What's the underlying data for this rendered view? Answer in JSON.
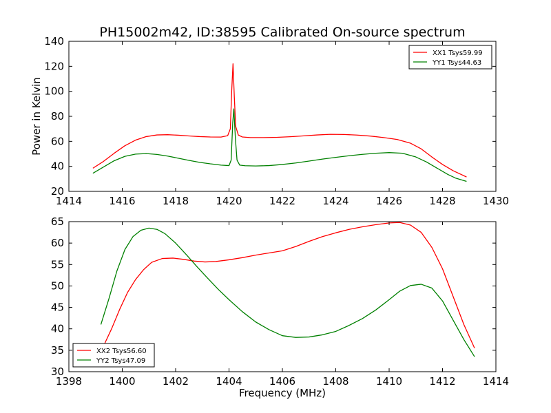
{
  "title": "PH15002m42, ID:38595 Calibrated On-source spectrum",
  "chart_data": [
    {
      "type": "line",
      "xlim": [
        1414,
        1430
      ],
      "ylim": [
        20,
        140
      ],
      "xticks": [
        1414,
        1416,
        1418,
        1420,
        1422,
        1424,
        1426,
        1428,
        1430
      ],
      "yticks": [
        20,
        40,
        60,
        80,
        100,
        120,
        140
      ],
      "xlabel": "",
      "ylabel": "Power in Kelvin",
      "legend": "top-right",
      "series": [
        {
          "name": "XX1 Tsys59.99",
          "color": "#ff0000",
          "x": [
            1414.9,
            1415.3,
            1415.7,
            1416.1,
            1416.5,
            1416.9,
            1417.3,
            1417.7,
            1418.1,
            1418.5,
            1418.9,
            1419.3,
            1419.7,
            1419.95,
            1420.05,
            1420.1,
            1420.15,
            1420.2,
            1420.25,
            1420.35,
            1420.5,
            1420.8,
            1421.3,
            1421.8,
            1422.3,
            1422.8,
            1423.3,
            1423.8,
            1424.3,
            1424.8,
            1425.3,
            1425.8,
            1426.3,
            1426.8,
            1427.2,
            1427.6,
            1428.0,
            1428.4,
            1428.9
          ],
          "y": [
            38.5,
            44,
            50.5,
            56.5,
            61,
            63.8,
            65.1,
            65.3,
            64.9,
            64.3,
            63.8,
            63.5,
            63.4,
            64.5,
            70,
            100,
            122,
            95,
            72,
            65,
            63.5,
            63,
            63,
            63.2,
            63.7,
            64.4,
            65.1,
            65.6,
            65.5,
            65,
            64.2,
            63,
            61.5,
            58.5,
            54,
            47.5,
            41.5,
            36.5,
            31.5
          ]
        },
        {
          "name": "YY1 Tsys44.63",
          "color": "#008000",
          "x": [
            1414.9,
            1415.3,
            1415.7,
            1416.1,
            1416.5,
            1416.9,
            1417.3,
            1417.7,
            1418.1,
            1418.5,
            1418.9,
            1419.3,
            1419.7,
            1420.0,
            1420.08,
            1420.14,
            1420.18,
            1420.24,
            1420.3,
            1420.4,
            1420.6,
            1421.0,
            1421.5,
            1422.0,
            1422.5,
            1423.0,
            1423.5,
            1424.0,
            1424.5,
            1425.0,
            1425.5,
            1426.0,
            1426.5,
            1427.0,
            1427.4,
            1427.8,
            1428.2,
            1428.5,
            1428.9
          ],
          "y": [
            34.5,
            39.5,
            44.5,
            48,
            49.8,
            50.2,
            49.5,
            48.2,
            46.5,
            44.8,
            43.2,
            42,
            41,
            40.6,
            45,
            75,
            86,
            62,
            45,
            41,
            40.5,
            40.3,
            40.6,
            41.5,
            42.7,
            44.2,
            45.8,
            47.2,
            48.5,
            49.6,
            50.5,
            51,
            50.5,
            47.5,
            43.5,
            38.5,
            33.5,
            30.5,
            28
          ]
        }
      ]
    },
    {
      "type": "line",
      "xlim": [
        1398,
        1414
      ],
      "ylim": [
        30,
        65
      ],
      "xticks": [
        1398,
        1400,
        1402,
        1404,
        1406,
        1408,
        1410,
        1412,
        1414
      ],
      "yticks": [
        30,
        35,
        40,
        45,
        50,
        55,
        60,
        65
      ],
      "xlabel": "Frequency (MHz)",
      "ylabel": "",
      "legend": "bottom-left",
      "series": [
        {
          "name": "XX2 Tsys56.60",
          "color": "#ff0000",
          "x": [
            1399.3,
            1399.6,
            1399.9,
            1400.2,
            1400.5,
            1400.8,
            1401.1,
            1401.5,
            1401.9,
            1402.3,
            1402.7,
            1403.1,
            1403.5,
            1404.0,
            1404.5,
            1405.0,
            1405.5,
            1406.0,
            1406.5,
            1407.0,
            1407.5,
            1408.0,
            1408.5,
            1409.0,
            1409.5,
            1410.0,
            1410.4,
            1410.8,
            1411.2,
            1411.6,
            1412.0,
            1412.4,
            1412.8,
            1413.2
          ],
          "y": [
            36,
            40,
            44.5,
            48.5,
            51.5,
            53.8,
            55.5,
            56.4,
            56.5,
            56.2,
            55.8,
            55.6,
            55.7,
            56.1,
            56.6,
            57.2,
            57.7,
            58.2,
            59.2,
            60.4,
            61.5,
            62.4,
            63.2,
            63.8,
            64.3,
            64.7,
            64.8,
            64.2,
            62.5,
            59,
            54,
            47.5,
            41,
            35.5
          ]
        },
        {
          "name": "YY2 Tsys47.09",
          "color": "#008000",
          "x": [
            1399.2,
            1399.5,
            1399.8,
            1400.1,
            1400.4,
            1400.7,
            1401.0,
            1401.3,
            1401.6,
            1402.0,
            1402.4,
            1402.8,
            1403.2,
            1403.6,
            1404.0,
            1404.5,
            1405.0,
            1405.5,
            1406.0,
            1406.5,
            1407.0,
            1407.5,
            1408.0,
            1408.5,
            1409.0,
            1409.5,
            1410.0,
            1410.4,
            1410.8,
            1411.2,
            1411.6,
            1412.0,
            1412.4,
            1412.8,
            1413.2
          ],
          "y": [
            41,
            47,
            53.5,
            58.5,
            61.5,
            63,
            63.5,
            63.2,
            62.2,
            60,
            57.3,
            54.5,
            51.8,
            49.2,
            46.8,
            44,
            41.6,
            39.8,
            38.4,
            38,
            38.1,
            38.6,
            39.4,
            40.8,
            42.4,
            44.4,
            46.8,
            48.8,
            50.1,
            50.4,
            49.5,
            46.5,
            42,
            37.5,
            33.5
          ]
        }
      ]
    }
  ]
}
